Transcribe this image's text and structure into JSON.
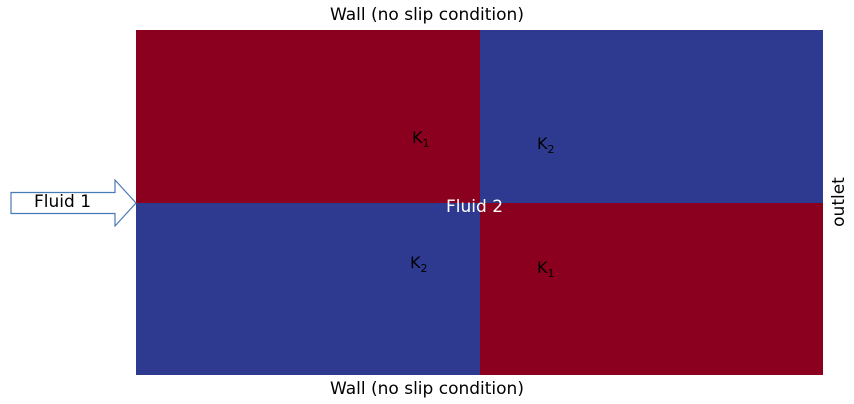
{
  "walls": {
    "top_label": "Wall (no slip condition)",
    "bottom_label": "Wall (no slip condition)"
  },
  "inlet": {
    "label": "Fluid 1"
  },
  "outlet": {
    "label": "outlet"
  },
  "center": {
    "label": "Fluid 2"
  },
  "regions": {
    "top_left": {
      "letter": "K",
      "sub": "1",
      "color": "#8b001e"
    },
    "top_right": {
      "letter": "K",
      "sub": "2",
      "color": "#2e3a8f"
    },
    "bottom_left": {
      "letter": "K",
      "sub": "2",
      "color": "#2e3a8f"
    },
    "bottom_right": {
      "letter": "K",
      "sub": "1",
      "color": "#8b001e"
    }
  }
}
